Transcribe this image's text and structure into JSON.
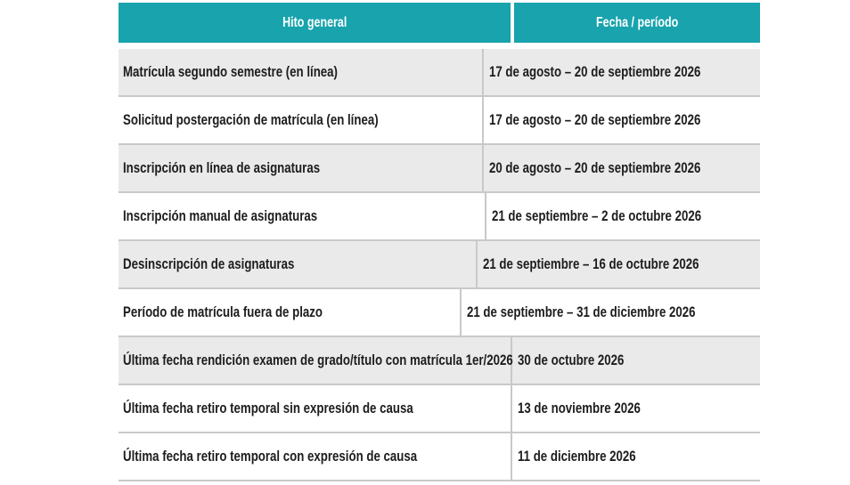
{
  "colors": {
    "header_bg": "#18a3ad",
    "header_text": "#ffffff",
    "row_shaded": "#eaeaea",
    "row_plain": "#ffffff",
    "divider": "#c9c9c9",
    "text": "#1d1d1d"
  },
  "table": {
    "columns": [
      {
        "label": "Hito general"
      },
      {
        "label": "Fecha / período"
      }
    ],
    "rows": [
      {
        "hito": "Matrícula segundo semestre (en línea)",
        "fecha": "17 de agosto – 20 de septiembre 2026",
        "shaded": true
      },
      {
        "hito": "Solicitud postergación de matrícula (en línea)",
        "fecha": "17 de agosto – 20 de septiembre 2026",
        "shaded": false
      },
      {
        "hito": "Inscripción en línea de asignaturas",
        "fecha": "20 de agosto – 20 de septiembre 2026",
        "shaded": true
      },
      {
        "hito": "Inscripción manual de asignaturas",
        "fecha": "21 de septiembre – 2 de octubre 2026",
        "shaded": false
      },
      {
        "hito": "Desinscripción de asignaturas",
        "fecha": "21 de septiembre – 16 de octubre 2026",
        "shaded": true
      },
      {
        "hito": "Período de matrícula fuera de plazo",
        "fecha": "21 de septiembre – 31 de diciembre 2026",
        "shaded": false
      },
      {
        "hito": "Última fecha rendición examen de grado/título con matrícula 1er/2026",
        "fecha": "30 de octubre 2026",
        "shaded": true
      },
      {
        "hito": "Última fecha retiro temporal sin expresión de causa",
        "fecha": "13 de noviembre 2026",
        "shaded": false
      },
      {
        "hito": "Última fecha retiro temporal con expresión de causa",
        "fecha": "11 de diciembre 2026",
        "shaded": false
      }
    ]
  }
}
